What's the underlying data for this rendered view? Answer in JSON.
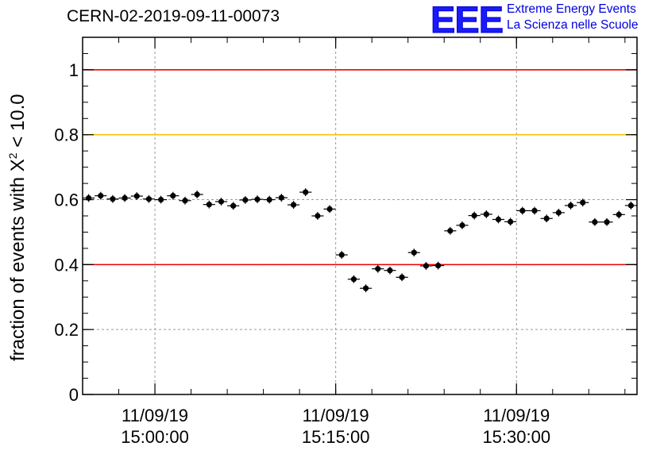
{
  "title": "CERN-02-2019-09-11-00073",
  "logo": {
    "mark": "EEE",
    "line1": "Extreme Energy Events",
    "line2": "La Scienza nelle Scuole"
  },
  "chart_data": {
    "type": "scatter",
    "title": "CERN-02-2019-09-11-00073",
    "xlabel": "",
    "ylabel": {
      "pre": "fraction of events with Χ",
      "sup": "2",
      "post": " < 10.0"
    },
    "ylim": [
      0,
      1.1
    ],
    "grid": true,
    "x_ticks": [
      {
        "date": "11/09/19",
        "time": "15:00:00"
      },
      {
        "date": "11/09/19",
        "time": "15:15:00"
      },
      {
        "date": "11/09/19",
        "time": "15:30:00"
      }
    ],
    "y_ticks": [
      "0",
      "0.2",
      "0.4",
      "0.6",
      "0.8",
      "1"
    ],
    "x_range": [
      "14:54:00",
      "15:40:00"
    ],
    "reference_lines": [
      {
        "value": 1.0,
        "color": "#ee0000"
      },
      {
        "value": 0.8,
        "color": "#ffc000"
      },
      {
        "value": 0.4,
        "color": "#ee0000"
      }
    ],
    "x": [
      "14:54:30",
      "14:55:30",
      "14:56:30",
      "14:57:30",
      "14:58:30",
      "14:59:30",
      "15:00:30",
      "15:01:30",
      "15:02:30",
      "15:03:30",
      "15:04:30",
      "15:05:30",
      "15:06:30",
      "15:07:30",
      "15:08:30",
      "15:09:30",
      "15:10:30",
      "15:11:30",
      "15:12:30",
      "15:13:30",
      "15:14:30",
      "15:15:30",
      "15:16:30",
      "15:17:30",
      "15:18:30",
      "15:19:30",
      "15:20:30",
      "15:21:30",
      "15:22:30",
      "15:23:30",
      "15:24:30",
      "15:25:30",
      "15:26:30",
      "15:27:30",
      "15:28:30",
      "15:29:30",
      "15:30:30",
      "15:31:30",
      "15:32:30",
      "15:33:30",
      "15:34:30",
      "15:35:30",
      "15:36:30",
      "15:37:30",
      "15:38:30",
      "15:39:30"
    ],
    "y": [
      0.605,
      0.612,
      0.602,
      0.605,
      0.611,
      0.602,
      0.6,
      0.612,
      0.597,
      0.616,
      0.585,
      0.594,
      0.581,
      0.599,
      0.601,
      0.6,
      0.606,
      0.584,
      0.623,
      0.55,
      0.571,
      0.43,
      0.355,
      0.327,
      0.387,
      0.382,
      0.361,
      0.437,
      0.396,
      0.397,
      0.504,
      0.521,
      0.551,
      0.555,
      0.539,
      0.532,
      0.566,
      0.566,
      0.542,
      0.56,
      0.582,
      0.591,
      0.531,
      0.531,
      0.554,
      0.582
    ],
    "y_err": 0.012,
    "marker_color": "#000000"
  }
}
